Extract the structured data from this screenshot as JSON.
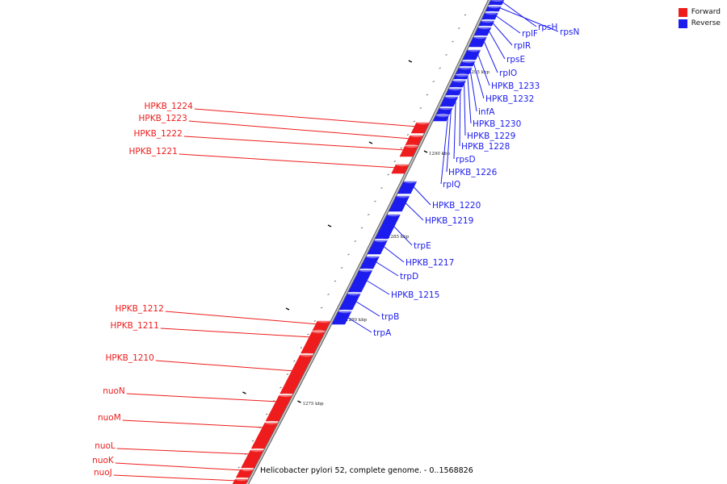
{
  "colors": {
    "forward": "#ee1c1c",
    "reverse": "#1c1cee",
    "backbone": "#8c8c8c"
  },
  "legend": {
    "forward": "Forward",
    "reverse": "Reverse"
  },
  "caption": "Helicobacter pylori 52, complete genome. - 0..1568826",
  "scale_labels": [
    "1275 kbp",
    "1280 kbp",
    "1285 kbp",
    "1290 kbp",
    "1295 kbp"
  ],
  "forward_genes": [
    "HPKB_1224",
    "HPKB_1223",
    "HPKB_1222",
    "HPKB_1221",
    "HPKB_1212",
    "HPKB_1211",
    "HPKB_1210",
    "nuoN",
    "nuoM",
    "nuoL",
    "nuoK",
    "nuoJ"
  ],
  "reverse_genes": [
    "rpsH",
    "rpsN",
    "rplF",
    "rplR",
    "rpsE",
    "rplO",
    "HPKB_1233",
    "HPKB_1232",
    "infA",
    "HPKB_1230",
    "HPKB_1229",
    "HPKB_1228",
    "rpsD",
    "HPKB_1226",
    "rplQ",
    "HPKB_1220",
    "HPKB_1219",
    "trpE",
    "HPKB_1217",
    "trpD",
    "HPKB_1215",
    "trpB",
    "trpA"
  ]
}
